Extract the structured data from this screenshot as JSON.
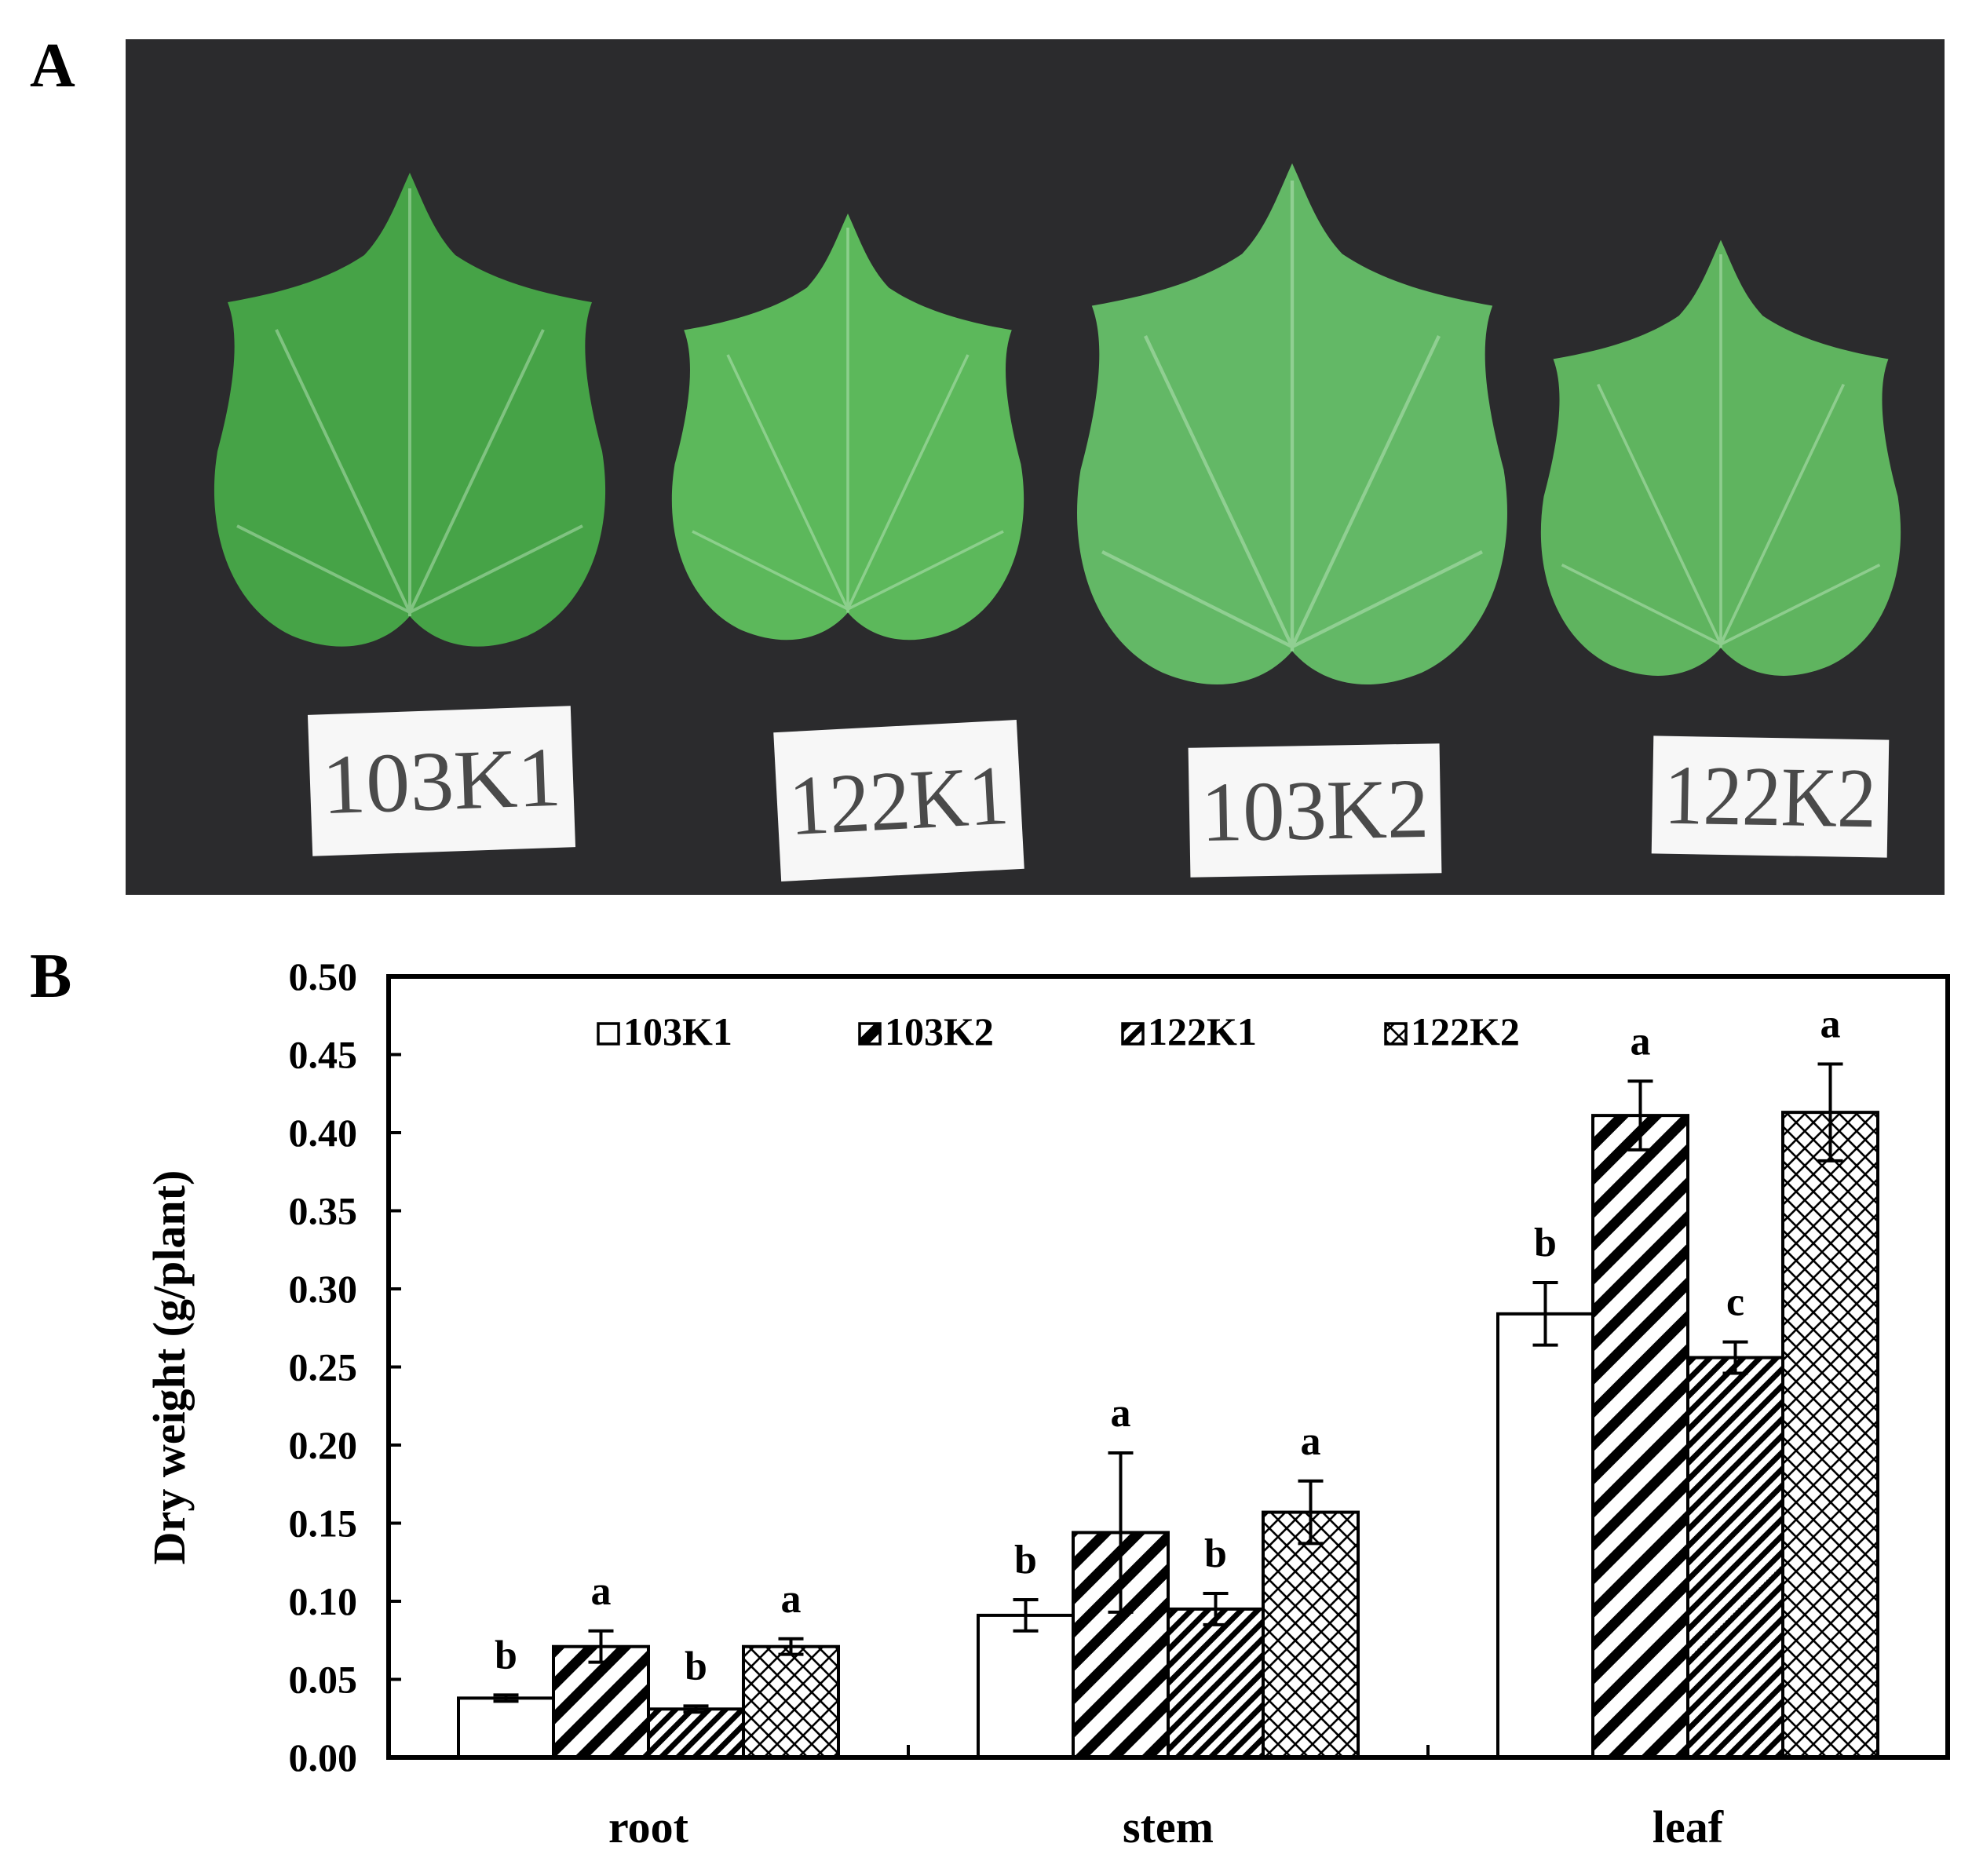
{
  "panels": {
    "a_letter": "A",
    "b_letter": "B"
  },
  "photo": {
    "background_color": "#2b2b2d",
    "leaf_colors": [
      "#46a347",
      "#5cb85b",
      "#63b866",
      "#5fb45f"
    ],
    "tags": [
      "103K1",
      "122K1",
      "103K2",
      "122K2"
    ]
  },
  "chart_data": {
    "type": "bar",
    "title": "",
    "xlabel": "",
    "ylabel": "Dry weight (g/plant)",
    "ylim": [
      0,
      0.5
    ],
    "yticks": [
      "0.00",
      "0.05",
      "0.10",
      "0.15",
      "0.20",
      "0.25",
      "0.30",
      "0.35",
      "0.40",
      "0.45",
      "0.50"
    ],
    "categories": [
      "root",
      "stem",
      "leaf"
    ],
    "legend_placement": "top",
    "grid": false,
    "series": [
      {
        "name": "103K1",
        "pattern": "open",
        "values": [
          0.038,
          0.091,
          0.284
        ],
        "errors": [
          0.002,
          0.01,
          0.02
        ],
        "letters": [
          "b",
          "b",
          "b"
        ]
      },
      {
        "name": "103K2",
        "pattern": "diagonal-wide",
        "values": [
          0.071,
          0.144,
          0.411
        ],
        "errors": [
          0.01,
          0.051,
          0.022
        ],
        "letters": [
          "a",
          "a",
          "a"
        ]
      },
      {
        "name": "122K1",
        "pattern": "diagonal-dense",
        "values": [
          0.031,
          0.095,
          0.256
        ],
        "errors": [
          0.002,
          0.01,
          0.01
        ],
        "letters": [
          "b",
          "b",
          "c"
        ]
      },
      {
        "name": "122K2",
        "pattern": "crosshatch",
        "values": [
          0.071,
          0.157,
          0.413
        ],
        "errors": [
          0.005,
          0.02,
          0.031
        ],
        "letters": [
          "a",
          "a",
          "a"
        ]
      }
    ]
  }
}
